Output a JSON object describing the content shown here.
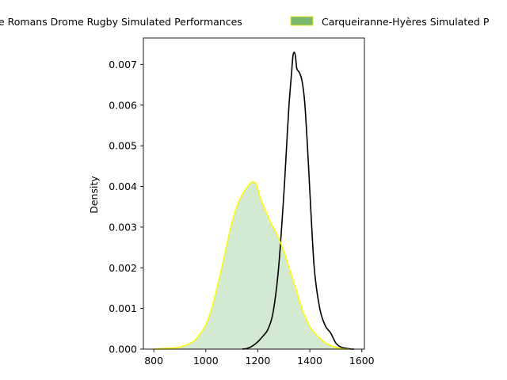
{
  "chart_data": {
    "type": "area",
    "title": "",
    "xlabel": "",
    "ylabel": "Density",
    "xlim": [
      760,
      1610
    ],
    "ylim": [
      0,
      0.00765
    ],
    "x_ticks": [
      800,
      1000,
      1200,
      1400,
      1600
    ],
    "y_ticks": [
      0.0,
      0.001,
      0.002,
      0.003,
      0.004,
      0.005,
      0.006,
      0.007
    ],
    "y_tick_labels": [
      "0.000",
      "0.001",
      "0.002",
      "0.003",
      "0.004",
      "0.005",
      "0.006",
      "0.007"
    ],
    "legend_position": "top, outside plot",
    "series": [
      {
        "name": "Valence Romans Drome Rugby Simulated Performances",
        "legend_label": "e Romans Drome Rugby Simulated Performances",
        "line_color": "#000000",
        "fill": false,
        "x": [
          1140,
          1160,
          1180,
          1200,
          1220,
          1240,
          1260,
          1280,
          1300,
          1310,
          1320,
          1330,
          1335,
          1340,
          1345,
          1350,
          1360,
          1370,
          1380,
          1390,
          1400,
          1410,
          1420,
          1440,
          1460,
          1480,
          1500,
          1520,
          1540,
          1560,
          1570
        ],
        "y": [
          0.0,
          2e-05,
          8e-05,
          0.00018,
          0.00032,
          0.0005,
          0.00095,
          0.002,
          0.0038,
          0.0049,
          0.006,
          0.0068,
          0.0072,
          0.0073,
          0.0072,
          0.0069,
          0.0068,
          0.0066,
          0.0061,
          0.0051,
          0.0039,
          0.0027,
          0.0018,
          0.00095,
          0.00057,
          0.0004,
          0.00015,
          5e-05,
          2e-05,
          0.0,
          0.0
        ]
      },
      {
        "name": "Carqueiranne-Hyères Simulated Performances",
        "legend_label": "Carqueiranne-Hyères Simulated P",
        "line_color": "#ffff00",
        "fill": true,
        "fill_color": "#a5d3a5",
        "fill_opacity": 0.5,
        "x": [
          800,
          850,
          900,
          950,
          975,
          1000,
          1025,
          1050,
          1075,
          1100,
          1125,
          1150,
          1175,
          1185,
          1195,
          1210,
          1230,
          1250,
          1275,
          1300,
          1325,
          1350,
          1375,
          1400,
          1425,
          1450,
          1475,
          1500,
          1525,
          1550
        ],
        "y": [
          0.0,
          2e-05,
          5e-05,
          0.00018,
          0.00035,
          0.0006,
          0.00105,
          0.0017,
          0.0024,
          0.0031,
          0.0036,
          0.0039,
          0.0041,
          0.0041,
          0.00405,
          0.0037,
          0.0034,
          0.0031,
          0.0028,
          0.0024,
          0.0019,
          0.0014,
          0.0009,
          0.00055,
          0.00035,
          0.0002,
          0.0001,
          4e-05,
          1e-05,
          0.0
        ]
      }
    ]
  }
}
